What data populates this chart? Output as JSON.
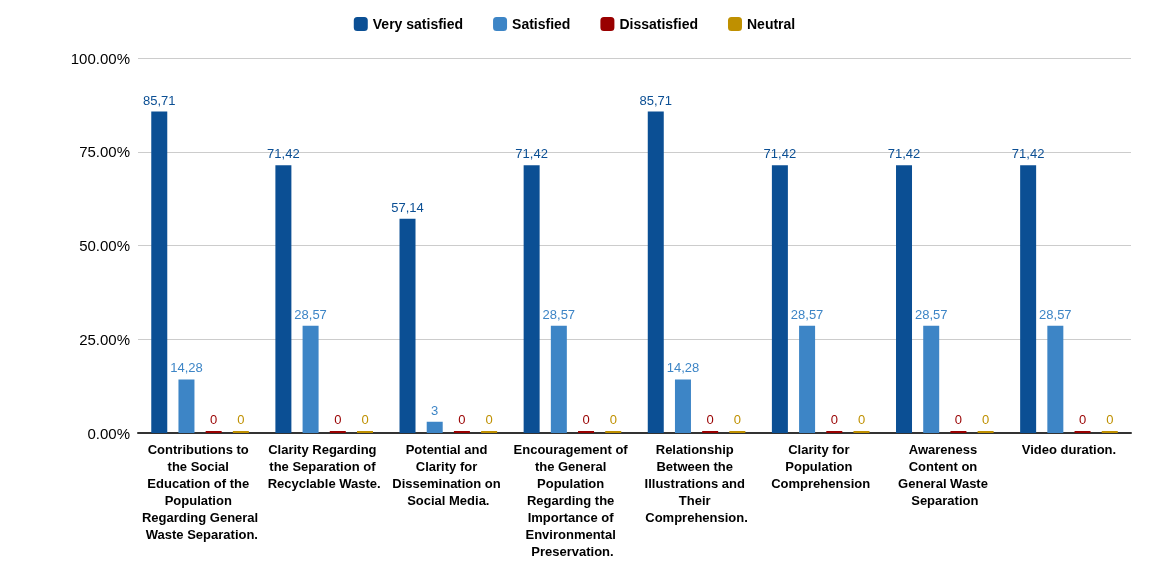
{
  "chart_data": {
    "type": "bar",
    "categories": [
      "Contributions to the Social Education of the Population Regarding General Waste Separation.",
      "Clarity Regarding the Separation of Recyclable Waste.",
      "Potential and Clarity for Dissemination on Social Media.",
      "Encouragement of the General Population Regarding the Importance of Environmental Preservation.",
      "Relationship Between the Illustrations and Their Comprehension.",
      "Clarity for Population Comprehension",
      "Awareness Content on General Waste Separation",
      "Video duration."
    ],
    "series": [
      {
        "name": "Very satisfied",
        "color": "#0b4f94",
        "values": [
          85.71,
          71.42,
          57.14,
          71.42,
          85.71,
          71.42,
          71.42,
          71.42
        ],
        "value_labels": [
          "85,71",
          "71,42",
          "57,14",
          "71,42",
          "85,71",
          "71,42",
          "71,42",
          "71,42"
        ]
      },
      {
        "name": "Satisfied",
        "color": "#3d85c6",
        "values": [
          14.28,
          28.57,
          3,
          28.57,
          14.28,
          28.57,
          28.57,
          28.57
        ],
        "value_labels": [
          "14,28",
          "28,57",
          "3",
          "28,57",
          "14,28",
          "28,57",
          "28,57",
          "28,57"
        ]
      },
      {
        "name": "Dissatisfied",
        "color": "#990000",
        "values": [
          0,
          0,
          0,
          0,
          0,
          0,
          0,
          0
        ],
        "value_labels": [
          "0",
          "0",
          "0",
          "0",
          "0",
          "0",
          "0",
          "0"
        ]
      },
      {
        "name": "Neutral",
        "color": "#bf9000",
        "values": [
          0,
          0,
          0,
          0,
          0,
          0,
          0,
          0
        ],
        "value_labels": [
          "0",
          "0",
          "0",
          "0",
          "0",
          "0",
          "0",
          "0"
        ]
      }
    ],
    "ylim": [
      0,
      100
    ],
    "yticks": [
      {
        "value": 0,
        "label": "0.00%"
      },
      {
        "value": 25,
        "label": "25.00%"
      },
      {
        "value": 50,
        "label": "50.00%"
      },
      {
        "value": 75,
        "label": "75.00%"
      },
      {
        "value": 100,
        "label": "100.00%"
      }
    ],
    "grid": "y",
    "legend": "top"
  }
}
